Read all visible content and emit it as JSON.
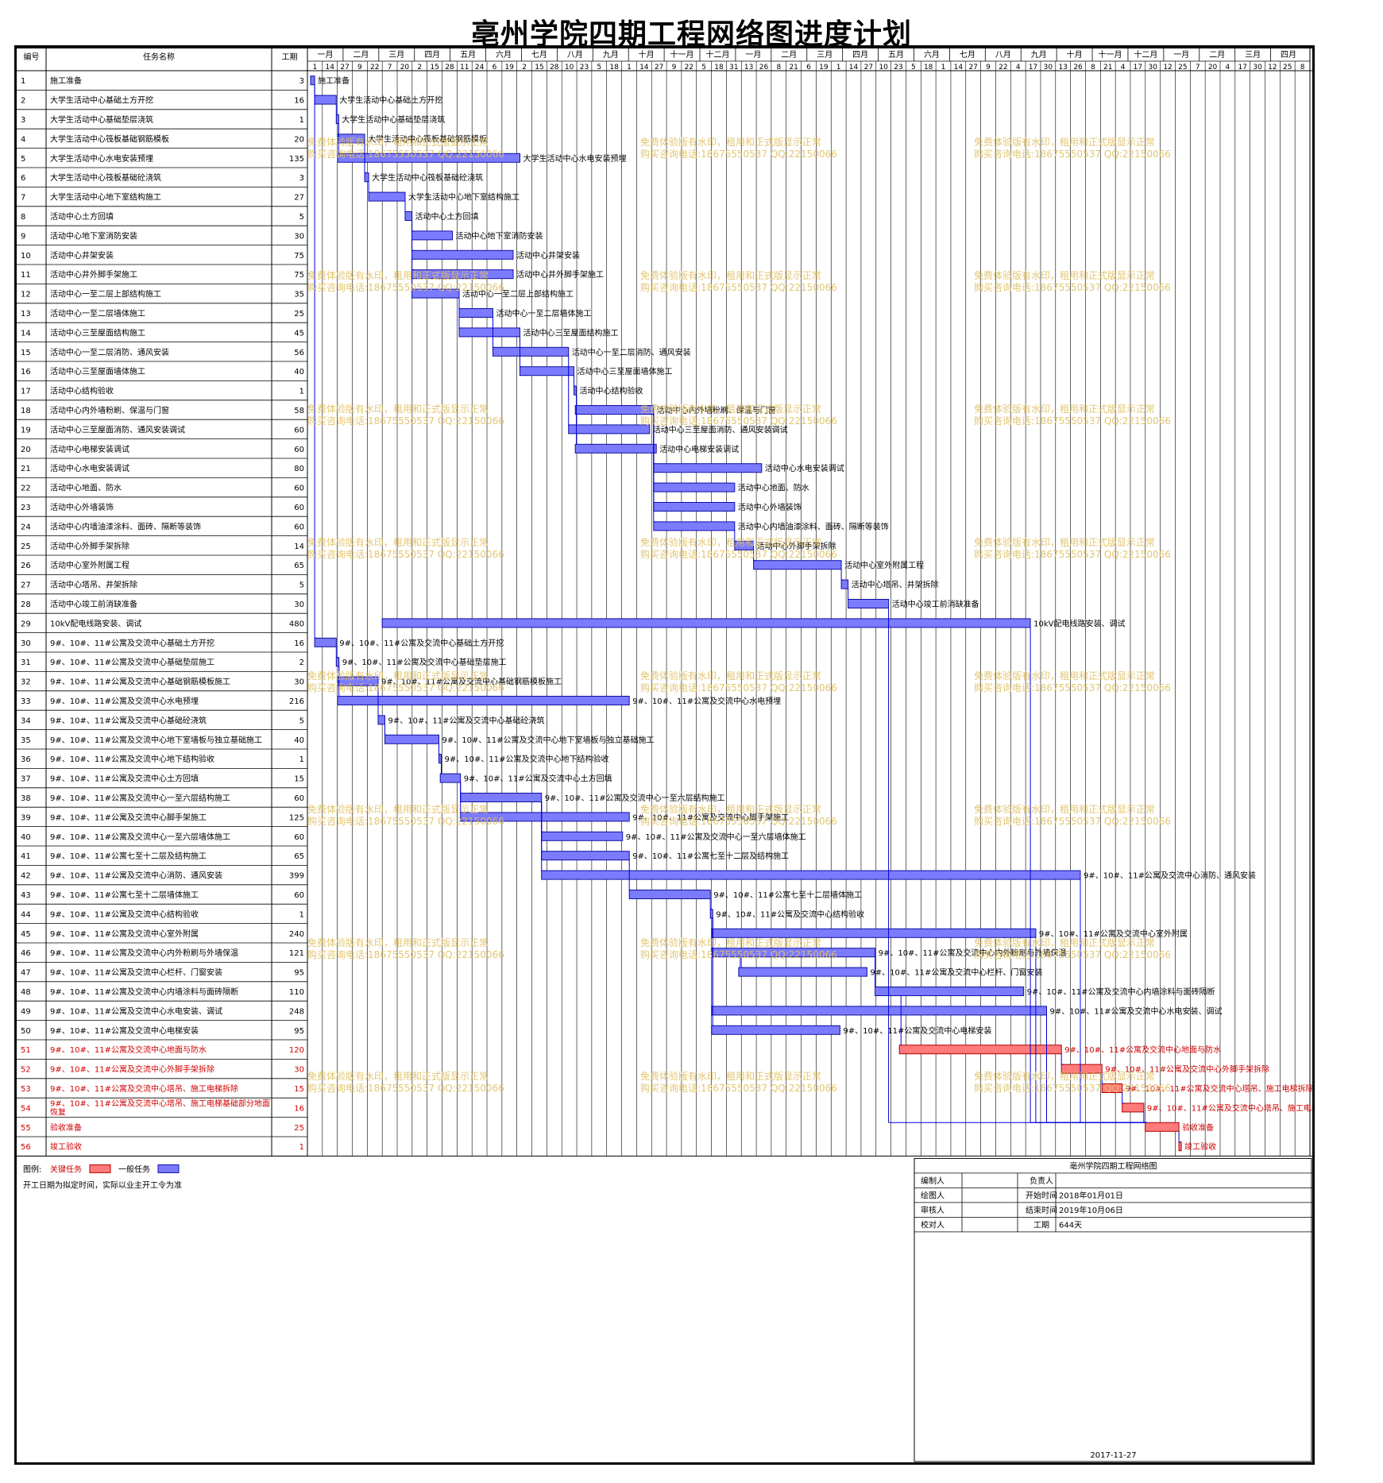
{
  "title": "亳州学院四期工程网络图进度计划",
  "headers": {
    "id": "编号",
    "name": "任务名称",
    "dur": "工期"
  },
  "colors": {
    "normal": "#7b7bff",
    "normal_border": "#1010a0",
    "critical": "#ff7b7b",
    "critical_border": "#b00000",
    "critical_text": "#d00000",
    "link": "#0000dd"
  },
  "months": [
    "一月",
    "二月",
    "三月",
    "四月",
    "五月",
    "六月",
    "七月",
    "八月",
    "九月",
    "十月",
    "十一月",
    "十二月",
    "一月",
    "二月",
    "三月",
    "四月",
    "五月",
    "六月",
    "七月",
    "八月",
    "九月",
    "十月",
    "十一月",
    "十二月",
    "一月",
    "二月",
    "三月",
    "四月"
  ],
  "days": [
    "1",
    "14",
    "27",
    "9",
    "22",
    "7",
    "20",
    "2",
    "15",
    "28",
    "11",
    "24",
    "6",
    "19",
    "2",
    "15",
    "28",
    "10",
    "23",
    "5",
    "18",
    "1",
    "14",
    "27",
    "9",
    "22",
    "5",
    "18",
    "31",
    "13",
    "26",
    "8",
    "21",
    "6",
    "19",
    "1",
    "14",
    "27",
    "10",
    "23",
    "5",
    "18",
    "1",
    "14",
    "27",
    "9",
    "22",
    "4",
    "17",
    "30",
    "13",
    "26",
    "8",
    "21",
    "4",
    "17",
    "30",
    "12",
    "25",
    "7",
    "20",
    "4",
    "17",
    "30",
    "12",
    "25",
    "8"
  ],
  "chart_data": {
    "type": "gantt",
    "title": "亳州学院四期工程网络图进度计划",
    "start_date": "2018-01-01",
    "tasks": [
      {
        "id": 1,
        "name": "施工准备",
        "duration": 3,
        "start": 0,
        "critical": false
      },
      {
        "id": 2,
        "name": "大学生活动中心基础土方开挖",
        "duration": 16,
        "start": 3,
        "critical": false
      },
      {
        "id": 3,
        "name": "大学生活动中心基础垫层浇筑",
        "duration": 1,
        "start": 19,
        "critical": false
      },
      {
        "id": 4,
        "name": "大学生活动中心筏板基础钢筋模板",
        "duration": 20,
        "start": 20,
        "critical": false
      },
      {
        "id": 5,
        "name": "大学生活动中心水电安装预埋",
        "duration": 135,
        "start": 20,
        "critical": false
      },
      {
        "id": 6,
        "name": "大学生活动中心筏板基础砼浇筑",
        "duration": 3,
        "start": 40,
        "critical": false
      },
      {
        "id": 7,
        "name": "大学生活动中心地下室结构施工",
        "duration": 27,
        "start": 43,
        "critical": false
      },
      {
        "id": 8,
        "name": "活动中心土方回填",
        "duration": 5,
        "start": 70,
        "critical": false
      },
      {
        "id": 9,
        "name": "活动中心地下室消防安装",
        "duration": 30,
        "start": 75,
        "critical": false
      },
      {
        "id": 10,
        "name": "活动中心井架安装",
        "duration": 75,
        "start": 75,
        "critical": false
      },
      {
        "id": 11,
        "name": "活动中心井外脚手架施工",
        "duration": 75,
        "start": 75,
        "critical": false
      },
      {
        "id": 12,
        "name": "活动中心一至二层上部结构施工",
        "duration": 35,
        "start": 75,
        "critical": false
      },
      {
        "id": 13,
        "name": "活动中心一至二层墙体施工",
        "duration": 25,
        "start": 110,
        "critical": false
      },
      {
        "id": 14,
        "name": "活动中心三至屋面结构施工",
        "duration": 45,
        "start": 110,
        "critical": false
      },
      {
        "id": 15,
        "name": "活动中心一至二层消防、通风安装",
        "duration": 56,
        "start": 135,
        "critical": false
      },
      {
        "id": 16,
        "name": "活动中心三至屋面墙体施工",
        "duration": 40,
        "start": 155,
        "critical": false
      },
      {
        "id": 17,
        "name": "活动中心结构验收",
        "duration": 1,
        "start": 195,
        "critical": false
      },
      {
        "id": 18,
        "name": "活动中心内外墙粉刷、保温与门窗",
        "duration": 58,
        "start": 196,
        "critical": false
      },
      {
        "id": 19,
        "name": "活动中心三至屋面消防、通风安装调试",
        "duration": 60,
        "start": 191,
        "critical": false
      },
      {
        "id": 20,
        "name": "活动中心电梯安装调试",
        "duration": 60,
        "start": 196,
        "critical": false
      },
      {
        "id": 21,
        "name": "活动中心水电安装调试",
        "duration": 80,
        "start": 254,
        "critical": false
      },
      {
        "id": 22,
        "name": "活动中心地面、防水",
        "duration": 60,
        "start": 254,
        "critical": false
      },
      {
        "id": 23,
        "name": "活动中心外墙装饰",
        "duration": 60,
        "start": 254,
        "critical": false
      },
      {
        "id": 24,
        "name": "活动中心内墙油漆涂料、面砖、隔断等装饰",
        "duration": 60,
        "start": 254,
        "critical": false
      },
      {
        "id": 25,
        "name": "活动中心外脚手架拆除",
        "duration": 14,
        "start": 314,
        "critical": false
      },
      {
        "id": 26,
        "name": "活动中心室外附属工程",
        "duration": 65,
        "start": 328,
        "critical": false
      },
      {
        "id": 27,
        "name": "活动中心塔吊、井架拆除",
        "duration": 5,
        "start": 393,
        "critical": false
      },
      {
        "id": 28,
        "name": "活动中心竣工前消缺准备",
        "duration": 30,
        "start": 398,
        "critical": false
      },
      {
        "id": 29,
        "name": "10kV配电线路安装、调试",
        "duration": 480,
        "start": 53,
        "critical": false
      },
      {
        "id": 30,
        "name": "9#、10#、11#公寓及交流中心基础土方开挖",
        "duration": 16,
        "start": 3,
        "critical": false
      },
      {
        "id": 31,
        "name": "9#、10#、11#公寓及交流中心基础垫层施工",
        "duration": 2,
        "start": 19,
        "critical": false
      },
      {
        "id": 32,
        "name": "9#、10#、11#公寓及交流中心基础钢筋模板施工",
        "duration": 30,
        "start": 20,
        "critical": false
      },
      {
        "id": 33,
        "name": "9#、10#、11#公寓及交流中心水电预埋",
        "duration": 216,
        "start": 20,
        "critical": false
      },
      {
        "id": 34,
        "name": "9#、10#、11#公寓及交流中心基础砼浇筑",
        "duration": 5,
        "start": 50,
        "critical": false
      },
      {
        "id": 35,
        "name": "9#、10#、11#公寓及交流中心地下室墙板与独立基础施工",
        "duration": 40,
        "start": 55,
        "critical": false
      },
      {
        "id": 36,
        "name": "9#、10#、11#公寓及交流中心地下结构验收",
        "duration": 1,
        "start": 95,
        "critical": false
      },
      {
        "id": 37,
        "name": "9#、10#、11#公寓及交流中心土方回填",
        "duration": 15,
        "start": 96,
        "critical": false
      },
      {
        "id": 38,
        "name": "9#、10#、11#公寓及交流中心一至六层结构施工",
        "duration": 60,
        "start": 111,
        "critical": false
      },
      {
        "id": 39,
        "name": "9#、10#、11#公寓及交流中心脚手架施工",
        "duration": 125,
        "start": 111,
        "critical": false
      },
      {
        "id": 40,
        "name": "9#、10#、11#公寓及交流中心一至六层墙体施工",
        "duration": 60,
        "start": 171,
        "critical": false
      },
      {
        "id": 41,
        "name": "9#、10#、11#公寓七至十二层及结构施工",
        "duration": 65,
        "start": 171,
        "critical": false
      },
      {
        "id": 42,
        "name": "9#、10#、11#公寓及交流中心消防、通风安装",
        "duration": 399,
        "start": 171,
        "critical": false
      },
      {
        "id": 43,
        "name": "9#、10#、11#公寓七至十二层墙体施工",
        "duration": 60,
        "start": 236,
        "critical": false
      },
      {
        "id": 44,
        "name": "9#、10#、11#公寓及交流中心结构验收",
        "duration": 1,
        "start": 296,
        "critical": false
      },
      {
        "id": 45,
        "name": "9#、10#、11#公寓及交流中心室外附属",
        "duration": 240,
        "start": 297,
        "critical": false
      },
      {
        "id": 46,
        "name": "9#、10#、11#公寓及交流中心内外粉刷与外墙保温",
        "duration": 121,
        "start": 297,
        "critical": false
      },
      {
        "id": 47,
        "name": "9#、10#、11#公寓及交流中心栏杆、门窗安装",
        "duration": 95,
        "start": 317,
        "critical": false
      },
      {
        "id": 48,
        "name": "9#、10#、11#公寓及交流中心内墙涂料与面砖隔断",
        "duration": 110,
        "start": 418,
        "critical": false
      },
      {
        "id": 49,
        "name": "9#、10#、11#公寓及交流中心水电安装、调试",
        "duration": 248,
        "start": 297,
        "critical": false
      },
      {
        "id": 50,
        "name": "9#、10#、11#公寓及交流中心电梯安装",
        "duration": 95,
        "start": 297,
        "critical": false
      },
      {
        "id": 51,
        "name": "9#、10#、11#公寓及交流中心地面与防水",
        "duration": 120,
        "start": 436,
        "critical": true
      },
      {
        "id": 52,
        "name": "9#、10#、11#公寓及交流中心外脚手架拆除",
        "duration": 30,
        "start": 556,
        "critical": true
      },
      {
        "id": 53,
        "name": "9#、10#、11#公寓及交流中心塔吊、施工电梯拆除",
        "duration": 15,
        "start": 586,
        "critical": true
      },
      {
        "id": 54,
        "name": "9#、10#、11#公寓及交流中心塔吊、施工电梯基础部分地面恢复",
        "duration": 16,
        "start": 601,
        "critical": true
      },
      {
        "id": 55,
        "name": "验收准备",
        "duration": 25,
        "start": 618,
        "critical": true
      },
      {
        "id": 56,
        "name": "竣工验收",
        "duration": 1,
        "start": 643,
        "critical": true
      }
    ]
  },
  "legend": {
    "label": "图例:",
    "critical": "关键任务",
    "normal": "一般任务",
    "note": "开工日期为拟定时间，实际以业主开工令为准"
  },
  "info": {
    "title": "亳州学院四期工程网络图",
    "rows": [
      {
        "k1": "编制人",
        "v1": "",
        "k2": "负责人",
        "v2": ""
      },
      {
        "k1": "绘图人",
        "v1": "",
        "k2": "开始时间",
        "v2": "2018年01月01日"
      },
      {
        "k1": "审核人",
        "v1": "",
        "k2": "结束时间",
        "v2": "2019年10月06日"
      },
      {
        "k1": "校对人",
        "v1": "",
        "k2": "工期",
        "v2": "644天"
      }
    ],
    "date": "2017-11-27"
  },
  "watermark": {
    "line1": "免费体验版有水印，租用和正式版显示正常",
    "line2": "购买咨询电话:18675550537 QQ:22150066"
  }
}
